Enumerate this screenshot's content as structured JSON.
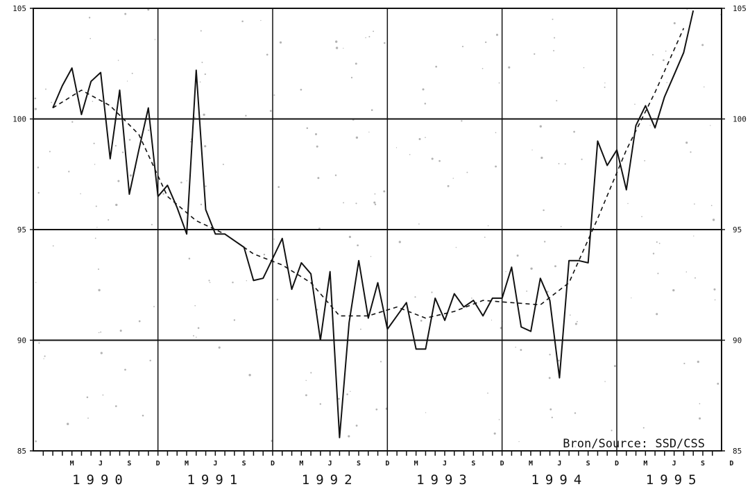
{
  "chart_data": {
    "type": "line",
    "title": "",
    "xlabel": "",
    "ylabel": "",
    "ylim": [
      85,
      105
    ],
    "y_ticks": [
      "85",
      "90",
      "95",
      "100",
      "105"
    ],
    "month_ticks": [
      "M",
      "J",
      "S",
      "D",
      "M",
      "J",
      "S",
      "D",
      "M",
      "J",
      "S",
      "D",
      "M",
      "J",
      "S",
      "D",
      "M",
      "J",
      "S",
      "D",
      "M",
      "J",
      "S",
      "D"
    ],
    "year_labels": [
      "1990",
      "1991",
      "1992",
      "1993",
      "1994",
      "1995"
    ],
    "annotation": "Bron/Source: SSD/CSS",
    "grid": true,
    "horizontal_gridlines": [
      90,
      95,
      100
    ],
    "series": [
      {
        "style": "solid",
        "x": [
          1990.0,
          1990.083,
          1990.167,
          1990.25,
          1990.333,
          1990.417,
          1990.5,
          1990.583,
          1990.667,
          1990.75,
          1990.833,
          1990.917,
          1991.0,
          1991.083,
          1991.167,
          1991.25,
          1991.333,
          1991.417,
          1991.5,
          1991.583,
          1991.667,
          1991.75,
          1991.833,
          1991.917,
          1992.0,
          1992.083,
          1992.167,
          1992.25,
          1992.333,
          1992.417,
          1992.5,
          1992.583,
          1992.667,
          1992.75,
          1992.833,
          1992.917,
          1993.0,
          1993.083,
          1993.167,
          1993.25,
          1993.333,
          1993.417,
          1993.5,
          1993.583,
          1993.667,
          1993.75,
          1993.833,
          1993.917,
          1994.0,
          1994.083,
          1994.167,
          1994.25,
          1994.333,
          1994.417,
          1994.5,
          1994.583,
          1994.667,
          1994.75,
          1994.833,
          1994.917,
          1995.0,
          1995.083,
          1995.167,
          1995.25,
          1995.333,
          1995.417,
          1995.5,
          1995.583
        ],
        "values": [
          100.5,
          101.5,
          102.3,
          100.2,
          101.7,
          102.1,
          98.2,
          101.3,
          96.6,
          98.6,
          100.5,
          96.5,
          97.0,
          96.0,
          94.8,
          102.2,
          95.9,
          94.8,
          94.8,
          94.5,
          94.2,
          92.7,
          92.8,
          93.7,
          94.6,
          92.3,
          93.5,
          93.0,
          90.0,
          93.1,
          85.6,
          90.8,
          93.6,
          91.0,
          92.6,
          90.5,
          91.1,
          91.7,
          89.6,
          89.6,
          91.9,
          90.9,
          92.1,
          91.5,
          91.8,
          91.1,
          91.9,
          91.9,
          93.3,
          90.6,
          90.4,
          92.8,
          91.8,
          88.3,
          93.6,
          93.6,
          93.5,
          99.0,
          97.9,
          98.6,
          96.8,
          99.7,
          100.6,
          99.6,
          101.0,
          102.0,
          103.0,
          104.9
        ]
      },
      {
        "style": "dashed",
        "x": [
          1990.0,
          1990.25,
          1990.5,
          1990.75,
          1991.0,
          1991.25,
          1991.5,
          1991.75,
          1992.0,
          1992.25,
          1992.5,
          1992.75,
          1993.0,
          1993.25,
          1993.5,
          1993.75,
          1994.0,
          1994.25,
          1994.5,
          1994.75,
          1995.0,
          1995.25,
          1995.5
        ],
        "values": [
          100.5,
          101.3,
          100.6,
          99.3,
          96.5,
          95.4,
          94.8,
          93.9,
          93.4,
          92.6,
          91.1,
          91.1,
          91.5,
          91.0,
          91.3,
          91.8,
          91.7,
          91.6,
          92.6,
          95.5,
          98.6,
          101.2,
          104.1
        ]
      }
    ]
  }
}
